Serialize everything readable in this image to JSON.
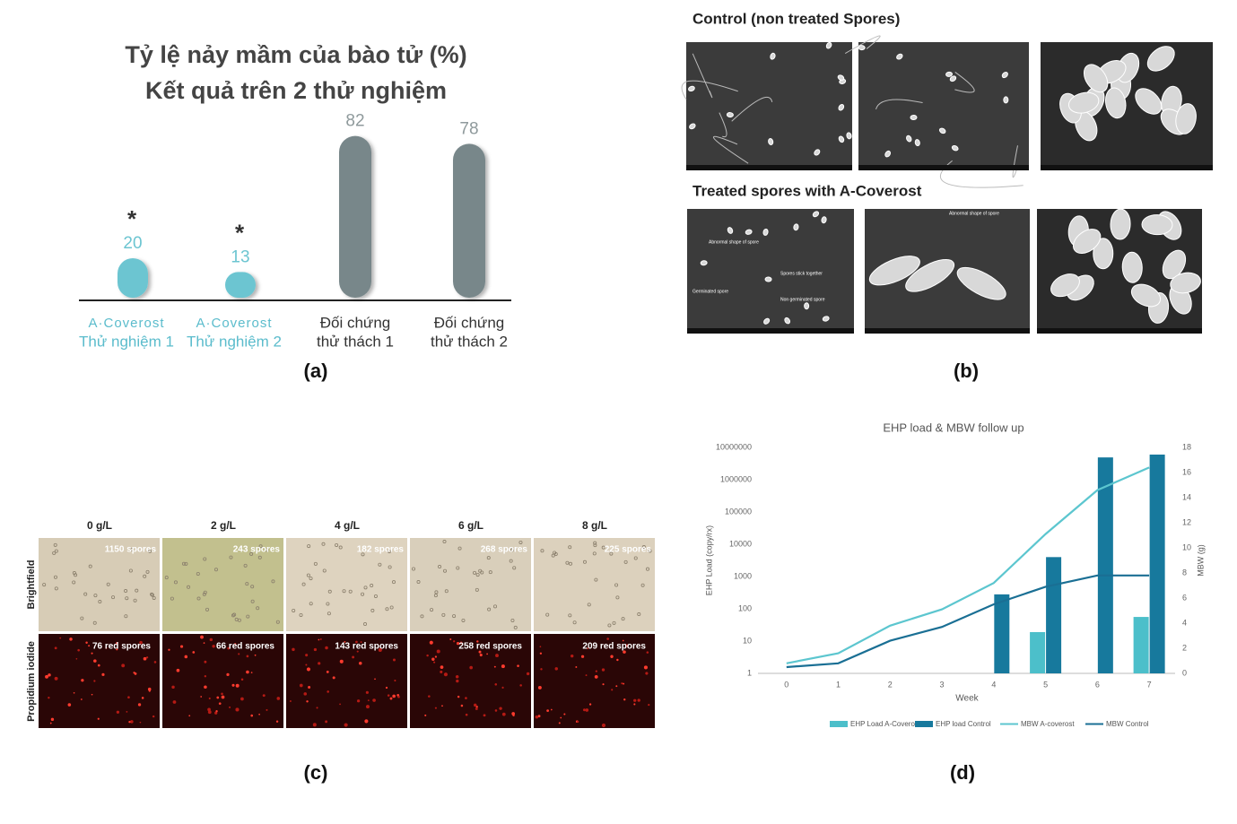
{
  "chart_data": [
    {
      "type": "bar",
      "title": [
        "Tỷ lệ nảy mầm của bào tử (%)",
        "Kết quả trên 2 thử nghiệm"
      ],
      "categories": [
        [
          "A·Coverost",
          "Thử nghiệm 1"
        ],
        [
          "A·Coverost",
          "Thử nghiệm 2"
        ],
        [
          "Đối chứng",
          "thử thách 1"
        ],
        [
          "Đối chứng",
          "thử thách 2"
        ]
      ],
      "values": [
        20,
        13,
        82,
        78
      ],
      "colors": [
        "#6cc5d1",
        "#6cc5d1",
        "#78878a",
        "#78878a"
      ],
      "significance": [
        "*",
        "*",
        null,
        null
      ]
    },
    {
      "type": "combo",
      "title": "EHP load & MBW follow up",
      "x_label": "Week",
      "y_label": "EHP Load (copy/rx)",
      "y2_label": "MBW (g)",
      "x": [
        0,
        1,
        2,
        3,
        4,
        5,
        6,
        7
      ],
      "xlim": [
        -0.55,
        7.5
      ],
      "xticks": [
        0,
        1,
        2,
        3,
        4,
        5,
        6,
        7
      ],
      "ylim": [
        1,
        10000000
      ],
      "yticks": [
        1,
        10,
        100,
        1000,
        10000,
        100000,
        1000000,
        10000000
      ],
      "ylog": true,
      "y2lim": [
        0,
        18
      ],
      "y2ticks": [
        0,
        2,
        4,
        6,
        8,
        10,
        12,
        14,
        16,
        18
      ],
      "legend": "bottom",
      "series": [
        {
          "name": "EHP Load A-Coverost",
          "kind": "bar",
          "color": "#4cbfca",
          "values": [
            null,
            null,
            null,
            null,
            null,
            19,
            null,
            56
          ]
        },
        {
          "name": "EHP load Control",
          "kind": "bar",
          "color": "#17799d",
          "values": [
            null,
            null,
            null,
            null,
            280,
            4000,
            4900000,
            6000000
          ]
        },
        {
          "name": "MBW A-coverost",
          "kind": "line",
          "axis": "y2",
          "color": "#5cc6cf",
          "values": [
            0.8,
            1.6,
            3.8,
            5.1,
            7.2,
            11.1,
            14.6,
            16.4
          ]
        },
        {
          "name": "MBW Control",
          "kind": "line",
          "axis": "y2",
          "color": "#1a6f94",
          "values": [
            0.5,
            0.8,
            2.6,
            3.7,
            5.5,
            6.9,
            7.8,
            7.8
          ]
        }
      ]
    }
  ],
  "panel_b": {
    "control_title": "Control (non treated Spores)",
    "treated_title": "Treated spores with A-Coverost",
    "annotations": [
      "Abnormal shape of spore",
      "Spores stick together",
      "Germinated spore",
      "Non germinated spore",
      "Abnormal shape of spore"
    ]
  },
  "panel_c": {
    "columns": [
      "0 g/L",
      "2 g/L",
      "4 g/L",
      "6 g/L",
      "8 g/L"
    ],
    "rows": [
      "Brightfield",
      "Propidium iodide"
    ],
    "counts": [
      [
        "1150 spores",
        "243 spores",
        "182 spores",
        "268 spores",
        "225 spores"
      ],
      [
        "76 red spores",
        "66 red spores",
        "143 red spores",
        "258 red spores",
        "209 red spores"
      ]
    ]
  },
  "panel_labels": [
    "(a)",
    "(b)",
    "(c)",
    "(d)"
  ]
}
